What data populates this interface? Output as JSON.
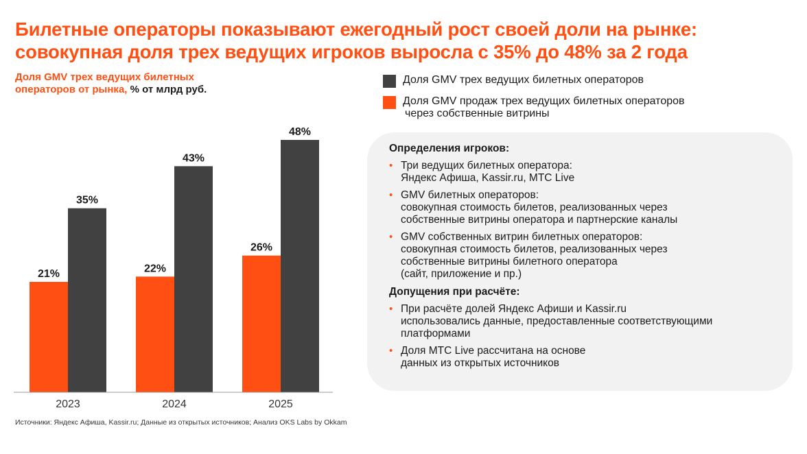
{
  "title": {
    "line1": "Билетные операторы показывают ежегодный рост своей доли на рынке:",
    "line2": "совокупная доля трех ведущих игроков выросла с 35% до 48% за 2 года"
  },
  "subtitle": {
    "line1": "Доля GMV трех ведущих билетных",
    "line2_orange": "операторов от рынка,",
    "line2_dark": " % от млрд руб."
  },
  "legend": {
    "items": [
      {
        "lines": [
          "Доля GMV трех ведущих билетных операторов"
        ],
        "color": "#414141"
      },
      {
        "lines": [
          "Доля GMV продаж трех ведущих билетных операторов",
          "через собственные витрины"
        ],
        "color": "#ff4f12"
      }
    ]
  },
  "chart_data": {
    "type": "bar",
    "title": "Доля GMV трех ведущих билетных операторов от рынка, % от млрд руб.",
    "xlabel": "",
    "ylabel": "",
    "categories": [
      "2023",
      "2024",
      "2025"
    ],
    "series": [
      {
        "name": "Доля GMV продаж трех ведущих билетных операторов через собственные витрины",
        "color": "#ff4f12",
        "values": [
          21,
          22,
          26
        ],
        "labels": [
          "21%",
          "22%",
          "26%"
        ]
      },
      {
        "name": "Доля GMV трех ведущих билетных операторов",
        "color": "#414141",
        "values": [
          35,
          43,
          48
        ],
        "labels": [
          "35%",
          "43%",
          "48%"
        ]
      }
    ],
    "ylim": [
      0,
      48
    ],
    "grid": false,
    "legend_position": "top-right",
    "axis_color": "#999999"
  },
  "panel": {
    "heading1": "Определения игроков:",
    "definitions": [
      {
        "lines": [
          "Три ведущих билетных оператора:",
          "Яндекс Афиша, Kassir.ru, МТС Live"
        ]
      },
      {
        "lines": [
          "GMV билетных операторов:",
          "совокупная стоимость билетов, реализованных через",
          "собственные витрины оператора и партнерские каналы"
        ]
      },
      {
        "lines": [
          "GMV собственных витрин билетных операторов:",
          "совокупная стоимость билетов, реализованных через",
          "собственные витрины билетного оператора",
          "(сайт, приложение и пр.)"
        ]
      }
    ],
    "heading2": "Допущения при расчёте:",
    "assumptions": [
      {
        "lines": [
          "При расчёте долей Яндекс Афиши и Kassir.ru",
          "использовались данные, предоставленные соответствующими",
          "платформами"
        ]
      },
      {
        "lines": [
          "Доля МТС Live рассчитана на основе",
          "данных из открытых источников"
        ]
      }
    ],
    "bullet": "•"
  },
  "footnote": "Источники: Яндекс Афиша, Kassir.ru; Данные из открытых источников; Анализ OKS Labs by Okkam",
  "colors": {
    "accent": "#ff4f12",
    "dark_bar": "#414141",
    "panel_bg": "#f2f2f2"
  }
}
